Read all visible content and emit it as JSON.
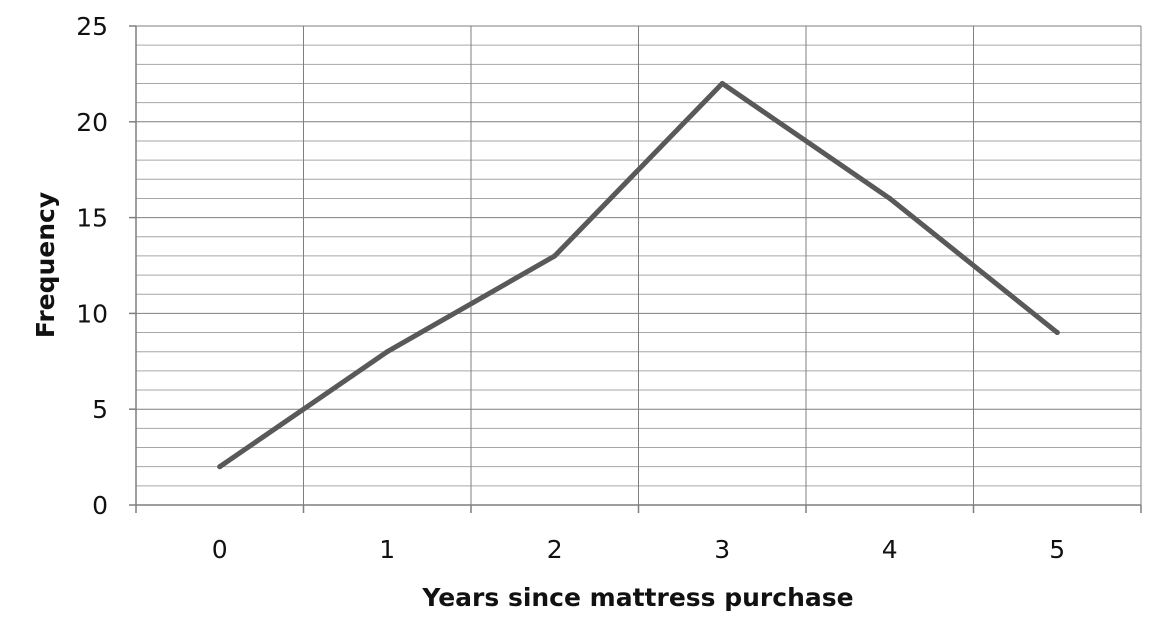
{
  "chart_data": {
    "type": "line",
    "title": "",
    "xlabel": "Years since mattress purchase",
    "ylabel": "Frequency",
    "x": [
      0,
      1,
      2,
      3,
      4,
      5
    ],
    "xticks": [
      "0",
      "1",
      "2",
      "3",
      "4",
      "5"
    ],
    "yticks": [
      "0",
      "5",
      "10",
      "15",
      "20",
      "25"
    ],
    "xlim": [
      -0.5,
      5.5
    ],
    "ylim": [
      0,
      25
    ],
    "y_major_step": 5,
    "y_minor_step": 1,
    "grid": true,
    "legend": "none",
    "series": [
      {
        "values": [
          2,
          8,
          13,
          22,
          16,
          9
        ]
      }
    ],
    "colors": {
      "line": "#595959",
      "major_grid": "#7f7f7f",
      "minor_grid": "#a6a6a6",
      "axis": "#7f7f7f"
    }
  }
}
